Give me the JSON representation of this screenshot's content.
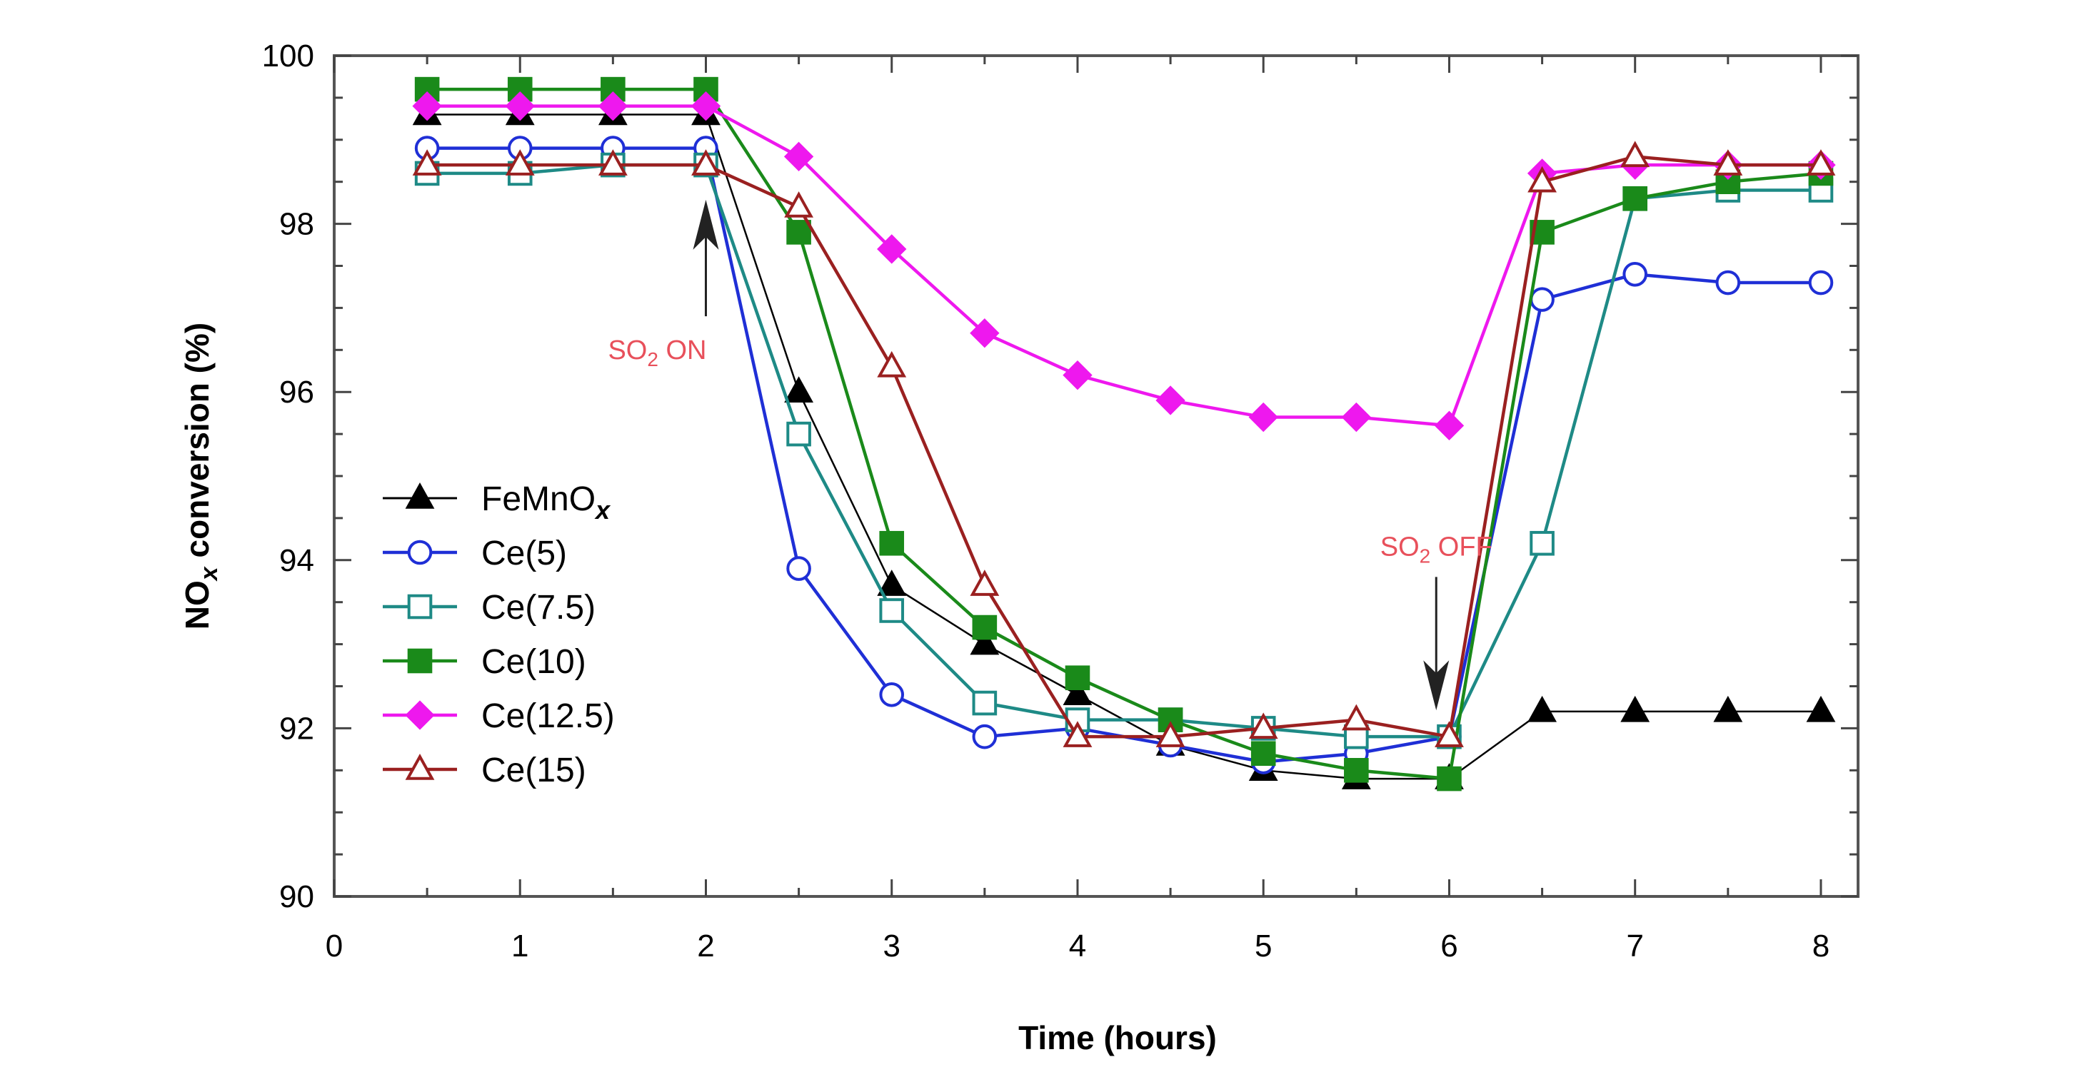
{
  "chart_data": {
    "type": "line",
    "title": "",
    "xlabel": "Time (hours)",
    "ylabel_main": "NO",
    "ylabel_sub": "x",
    "ylabel_rest": " conversion (%)",
    "xlim": [
      0,
      8.2
    ],
    "ylim": [
      90,
      100
    ],
    "xticks": [
      0,
      1,
      2,
      3,
      4,
      5,
      6,
      7,
      8
    ],
    "xtick_labels": [
      "0",
      "1",
      "2",
      "3",
      "4",
      "5",
      "6",
      "7",
      "8"
    ],
    "yticks": [
      90,
      92,
      94,
      96,
      98,
      100
    ],
    "ytick_labels": [
      "90",
      "92",
      "94",
      "96",
      "98",
      "100"
    ],
    "grid": false,
    "legend_position": "left-middle",
    "x": [
      0.5,
      1,
      1.5,
      2,
      2.5,
      3,
      3.5,
      4,
      4.5,
      5,
      5.5,
      6,
      6.5,
      7,
      7.5,
      8
    ],
    "series": [
      {
        "name": "FeMnOx",
        "legend_main": "FeMnO",
        "legend_sub": "x",
        "color": "#000000",
        "marker": "triangle",
        "filled": true,
        "values": [
          99.3,
          99.3,
          99.3,
          99.3,
          96.0,
          93.7,
          93.0,
          92.4,
          91.8,
          91.5,
          91.4,
          91.4,
          92.2,
          92.2,
          92.2,
          92.2
        ]
      },
      {
        "name": "Ce(5)",
        "legend_main": "Ce(5)",
        "legend_sub": "",
        "color": "#1f2fd6",
        "marker": "circle",
        "filled": false,
        "values": [
          98.9,
          98.9,
          98.9,
          98.9,
          93.9,
          92.4,
          91.9,
          92.0,
          91.8,
          91.6,
          91.7,
          91.9,
          97.1,
          97.4,
          97.3,
          97.3
        ]
      },
      {
        "name": "Ce(7.5)",
        "legend_main": "Ce(7.5)",
        "legend_sub": "",
        "color": "#1e8a86",
        "marker": "square",
        "filled": false,
        "values": [
          98.6,
          98.6,
          98.7,
          98.7,
          95.5,
          93.4,
          92.3,
          92.1,
          92.1,
          92.0,
          91.9,
          91.9,
          94.2,
          98.3,
          98.4,
          98.4
        ]
      },
      {
        "name": "Ce(10)",
        "legend_main": "Ce(10)",
        "legend_sub": "",
        "color": "#1a8a1a",
        "marker": "square",
        "filled": true,
        "values": [
          99.6,
          99.6,
          99.6,
          99.6,
          97.9,
          94.2,
          93.2,
          92.6,
          92.1,
          91.7,
          91.5,
          91.4,
          97.9,
          98.3,
          98.5,
          98.6
        ]
      },
      {
        "name": "Ce(12.5)",
        "legend_main": "Ce(12.5)",
        "legend_sub": "",
        "color": "#ee18ee",
        "marker": "diamond",
        "filled": true,
        "values": [
          99.4,
          99.4,
          99.4,
          99.4,
          98.8,
          97.7,
          96.7,
          96.2,
          95.9,
          95.7,
          95.7,
          95.6,
          98.6,
          98.7,
          98.7,
          98.7
        ]
      },
      {
        "name": "Ce(15)",
        "legend_main": "Ce(15)",
        "legend_sub": "",
        "color": "#9a2020",
        "marker": "triangle",
        "filled": false,
        "values": [
          98.7,
          98.7,
          98.7,
          98.7,
          98.2,
          96.3,
          93.7,
          91.9,
          91.9,
          92.0,
          92.1,
          91.9,
          98.5,
          98.8,
          98.7,
          98.7
        ]
      }
    ],
    "annotations": [
      {
        "id": "so2-on",
        "text_main": "SO",
        "text_sub": "2",
        "text_rest": " ON",
        "color": "#e8505b",
        "arrow_x": 2,
        "arrow_from_y": 96.9,
        "arrow_to_y": 98.1,
        "arrow_direction": "up"
      },
      {
        "id": "so2-off",
        "text_main": "SO",
        "text_sub": "2",
        "text_rest": " OFF",
        "color": "#e8505b",
        "arrow_x": 5.93,
        "arrow_from_y": 93.8,
        "arrow_to_y": 92.4,
        "arrow_direction": "down"
      }
    ]
  }
}
